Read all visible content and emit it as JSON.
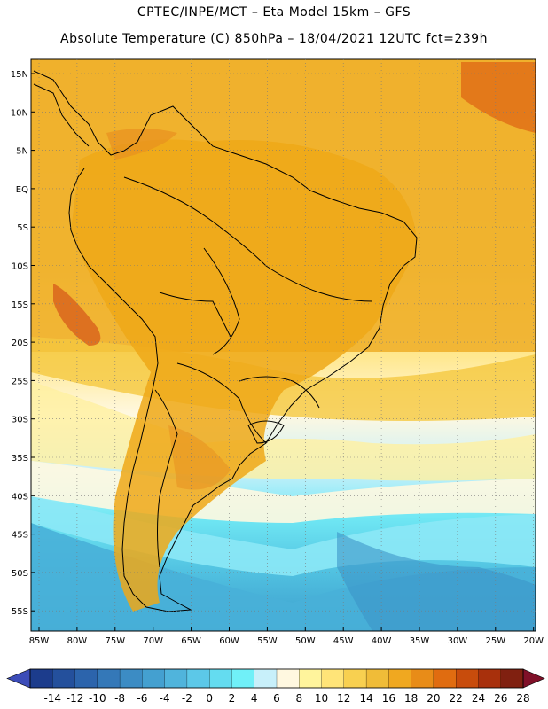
{
  "header": {
    "line1": "CPTEC/INPE/MCT –  Eta Model 15km – GFS",
    "line2": "Absolute Temperature (C) 850hPa – 18/04/2021 12UTC fct=239h"
  },
  "map": {
    "lat_labels": [
      "15N",
      "10N",
      "5N",
      "EQ",
      "5S",
      "10S",
      "15S",
      "20S",
      "25S",
      "30S",
      "35S",
      "40S",
      "45S",
      "50S",
      "55S"
    ],
    "lon_labels": [
      "85W",
      "80W",
      "75W",
      "70W",
      "65W",
      "60W",
      "55W",
      "50W",
      "45W",
      "40W",
      "35W",
      "30W",
      "25W",
      "20W"
    ]
  },
  "colorbar": {
    "labels": [
      "-14",
      "-12",
      "-10",
      "-8",
      "-6",
      "-4",
      "-2",
      "0",
      "2",
      "4",
      "6",
      "8",
      "10",
      "12",
      "14",
      "16",
      "18",
      "20",
      "22",
      "24",
      "26",
      "28"
    ],
    "colors": [
      "#1c3c8c",
      "#24509c",
      "#2c64ac",
      "#3478b8",
      "#3c8cc4",
      "#44a0d0",
      "#50b4dc",
      "#5cc8e8",
      "#64dcf0",
      "#70f0f8",
      "#c8f0fa",
      "#fff8e0",
      "#fff49c",
      "#ffe478",
      "#f8d050",
      "#f0bc38",
      "#f0a820",
      "#e88c18",
      "#e06c10",
      "#c84c0c",
      "#a8300c",
      "#802010"
    ],
    "low_color": "#3c4cb8",
    "high_color": "#801028"
  }
}
